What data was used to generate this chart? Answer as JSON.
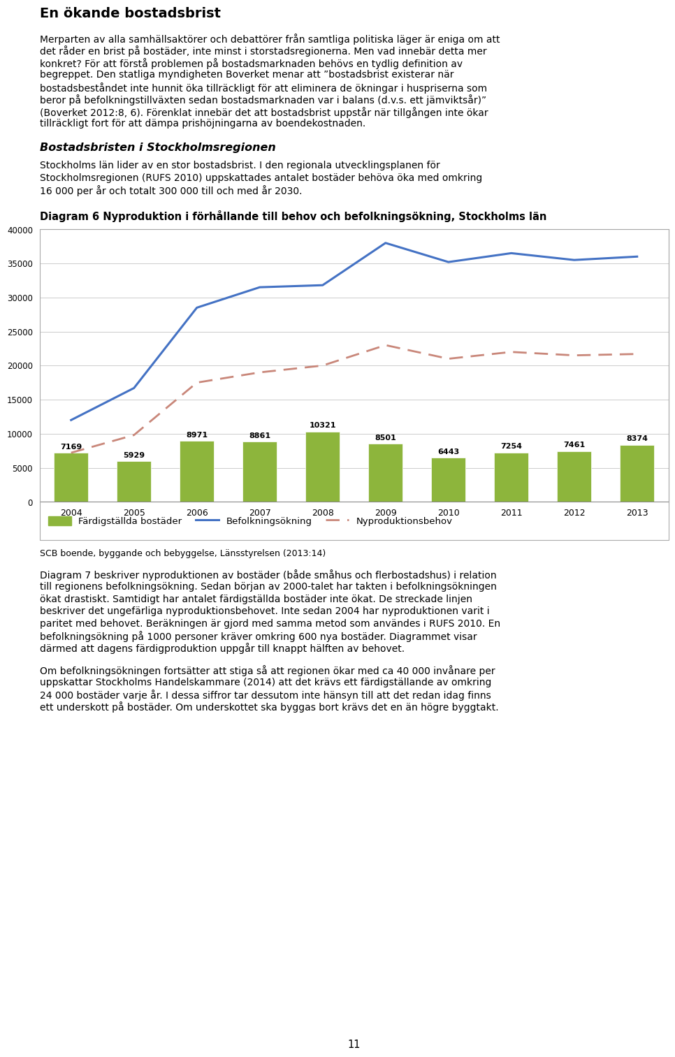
{
  "title_text": "En ökande bostadsbrist",
  "para1_lines": [
    "Merparten av alla samhällsaktörer och debattörer från samtliga politiska läger är eniga om att",
    "det råder en brist på bostäder, inte minst i storstadsregionerna. Men vad innebär detta mer",
    "konkret? För att förstå problemen på bostadsmarknaden behövs en tydlig definition av",
    "begreppet. Den statliga myndigheten Boverket menar att ”bostadsbrist existerar när",
    "bostadsbeståndet inte hunnit öka tillräckligt för att eliminera de ökningar i huspriserna som",
    "beror på befolkningstillväxten sedan bostadsmarknaden var i balans (d.v.s. ett jämviktsår)”",
    "(Boverket 2012:8, 6). Förenklat innebär det att bostadsbrist uppstår när tillgången inte ökar",
    "tillräckligt fort för att dämpa prishöjningarna av boendekostnaden."
  ],
  "subtitle2": "Bostadsbristen i Stockholmsregionen",
  "para2_lines": [
    "Stockholms län lider av en stor bostadsbrist. I den regionala utvecklingsplanen för",
    "Stockholmsregionen (RUFS 2010) uppskattades antalet bostäder behöva öka med omkring",
    "16 000 per år och totalt 300 000 till och med år 2030."
  ],
  "diagram_title": "Diagram 6 Nyproduktion i förhållande till behov och befolkningsökning, Stockholms län",
  "years": [
    2004,
    2005,
    2006,
    2007,
    2008,
    2009,
    2010,
    2011,
    2012,
    2013
  ],
  "bar_values": [
    7169,
    5929,
    8971,
    8861,
    10321,
    8501,
    6443,
    7254,
    7461,
    8374
  ],
  "befolkning_line": [
    12000,
    16700,
    28500,
    31500,
    31800,
    38000,
    35200,
    36500,
    35500,
    36000
  ],
  "nyproduktion_line": [
    7200,
    9800,
    17500,
    19000,
    20000,
    23000,
    21000,
    22000,
    21500,
    21700
  ],
  "bar_color": "#8DB53C",
  "line1_color": "#4472C4",
  "line2_color": "#C9877A",
  "source_text": "SCB boende, byggande och bebyggelse, Länsstyrelsen (2013:14)",
  "para3_lines": [
    "Diagram 7 beskriver nyproduktionen av bostäder (både småhus och flerbostadshus) i relation",
    "till regionens befolkningsökning. Sedan början av 2000-talet har takten i befolkningsökningen",
    "ökat drastiskt. Samtidigt har antalet färdigställda bostäder inte ökat. De streckade linjen",
    "beskriver det ungefärliga nyproduktionsbehovet. Inte sedan 2004 har nyproduktionen varit i",
    "paritet med behovet. Beräkningen är gjord med samma metod som användes i RUFS 2010. En",
    "befolkningsökning på 1000 personer kräver omkring 600 nya bostäder. Diagrammet visar",
    "därmed att dagens färdigproduktion uppgår till knappt hälften av behovet."
  ],
  "para4_lines": [
    "Om befolkningsökningen fortsätter att stiga så att regionen ökar med ca 40 000 invånare per",
    "uppskattar Stockholms Handelskammare (2014) att det krävs ett färdigställande av omkring",
    "24 000 bostäder varje år. I dessa siffror tar dessutom inte hänsyn till att det redan idag finns",
    "ett underskott på bostäder. Om underskottet ska byggas bort krävs det en än högre byggtakt."
  ],
  "page_number": "11",
  "ylim": [
    0,
    40000
  ],
  "yticks": [
    0,
    5000,
    10000,
    15000,
    20000,
    25000,
    30000,
    35000,
    40000
  ],
  "legend_labels": [
    "Färdigställda bostäder",
    "Befolkningsökning",
    "Nyproduktionsbehov"
  ]
}
